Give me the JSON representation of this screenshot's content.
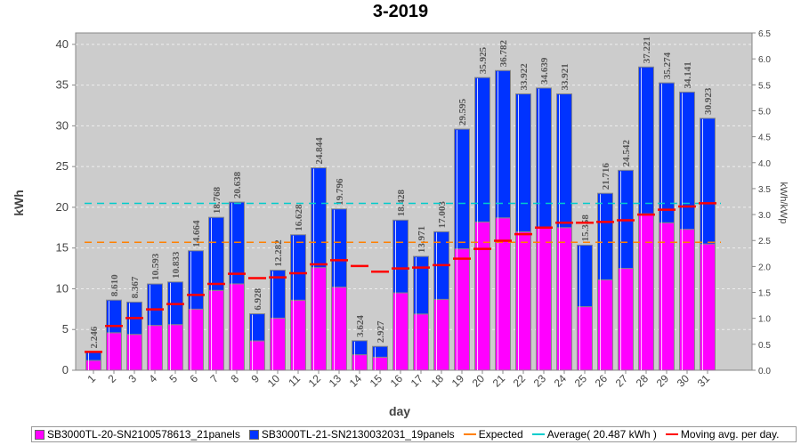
{
  "chart_data": {
    "type": "bar",
    "title": "3-2019",
    "xlabel": "day",
    "ylabel": "kWh",
    "y2label": "kWh/kWp",
    "ylim": [
      0,
      41.4
    ],
    "y2lim": [
      0,
      6.5
    ],
    "yticks": [
      "0",
      "5",
      "10",
      "15",
      "20",
      "25",
      "30",
      "35",
      "40"
    ],
    "y2ticks": [
      "0.0",
      "0.5",
      "1.0",
      "1.5",
      "2.0",
      "2.5",
      "3.0",
      "3.5",
      "4.0",
      "4.5",
      "5.0",
      "5.5",
      "6.0",
      "6.5"
    ],
    "grid": true,
    "legend_position": "bottom",
    "categories": [
      "1",
      "2",
      "3",
      "4",
      "5",
      "6",
      "7",
      "8",
      "9",
      "10",
      "11",
      "12",
      "13",
      "14",
      "15",
      "16",
      "17",
      "18",
      "19",
      "20",
      "21",
      "22",
      "23",
      "24",
      "25",
      "26",
      "27",
      "28",
      "29",
      "30",
      "31"
    ],
    "series": [
      {
        "name": "SB3000TL-20-SN2100578613_21panels",
        "type": "stacked-bar",
        "color": "#ff00ff",
        "values": [
          1.2,
          4.6,
          4.4,
          5.5,
          5.6,
          7.5,
          9.8,
          10.6,
          3.6,
          6.4,
          8.6,
          12.6,
          10.2,
          1.9,
          1.6,
          9.5,
          6.9,
          8.7,
          14.9,
          18.2,
          18.7,
          17.0,
          17.5,
          17.5,
          7.8,
          11.1,
          12.5,
          19.2,
          18.1,
          17.3,
          15.5
        ]
      },
      {
        "name": "SB3000TL-21-SN2130032031_19panels",
        "type": "stacked-bar",
        "color": "#0033ff",
        "values": [
          1.046,
          4.01,
          3.967,
          5.093,
          5.233,
          7.164,
          8.968,
          10.038,
          3.328,
          5.882,
          8.028,
          12.244,
          9.596,
          1.724,
          1.327,
          8.928,
          7.071,
          8.303,
          14.695,
          17.725,
          18.082,
          16.922,
          17.139,
          16.421,
          7.558,
          10.616,
          12.042,
          18.021,
          17.174,
          16.841,
          15.423
        ]
      },
      {
        "name": "Expected",
        "type": "line",
        "color": "#ff8000",
        "value": 15.7
      },
      {
        "name": "Average( 20.487 kWh )",
        "type": "line",
        "color": "#00cccc",
        "value": 20.487
      },
      {
        "name": "Moving avg. per day.",
        "type": "marker",
        "color": "#ff0000",
        "values": [
          2.25,
          5.43,
          6.4,
          7.47,
          8.12,
          9.25,
          10.6,
          11.84,
          11.3,
          11.4,
          11.9,
          13.0,
          13.5,
          12.8,
          12.1,
          12.5,
          12.6,
          12.9,
          13.7,
          14.9,
          15.9,
          16.7,
          17.5,
          18.1,
          18.1,
          18.2,
          18.4,
          19.1,
          19.7,
          20.1,
          20.5
        ]
      }
    ],
    "totals": [
      "2.246",
      "8.610",
      "8.367",
      "10.593",
      "10.833",
      "14.664",
      "18.768",
      "20.638",
      "6.928",
      "12.282",
      "16.628",
      "24.844",
      "19.796",
      "3.624",
      "2.927",
      "18.428",
      "13.971",
      "17.003",
      "29.595",
      "35.925",
      "36.782",
      "33.922",
      "34.639",
      "33.921",
      "15.358",
      "21.716",
      "24.542",
      "37.221",
      "35.274",
      "34.141",
      "30.923"
    ]
  }
}
